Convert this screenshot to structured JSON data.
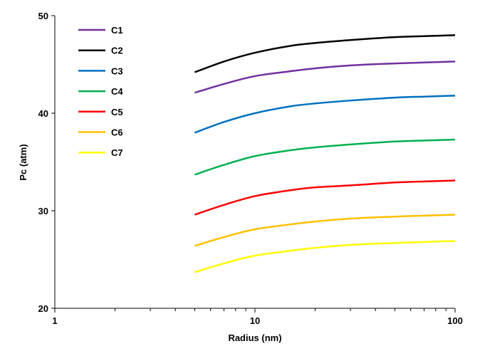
{
  "chart_data": {
    "type": "line",
    "title": "",
    "xlabel": "Radius (nm)",
    "ylabel": "Pc (atm)",
    "xscale": "log",
    "xlim": [
      1,
      100
    ],
    "ylim": [
      20,
      50
    ],
    "xticks": [
      "1",
      "10",
      "100"
    ],
    "yticks": [
      "20",
      "30",
      "40",
      "50"
    ],
    "grid": false,
    "legend_position": "top-left",
    "x": [
      5,
      7,
      10,
      15,
      20,
      30,
      50,
      70,
      100
    ],
    "series": [
      {
        "name": "C1",
        "color": "#7030A0",
        "values": [
          42.1,
          43.0,
          43.8,
          44.3,
          44.6,
          44.9,
          45.1,
          45.2,
          45.3
        ]
      },
      {
        "name": "C2",
        "color": "#000000",
        "values": [
          44.2,
          45.3,
          46.2,
          46.9,
          47.2,
          47.5,
          47.8,
          47.9,
          48.0
        ]
      },
      {
        "name": "C3",
        "color": "#0070C0",
        "values": [
          38.0,
          39.1,
          40.0,
          40.7,
          41.0,
          41.3,
          41.6,
          41.7,
          41.8
        ]
      },
      {
        "name": "C4",
        "color": "#00B050",
        "values": [
          33.7,
          34.7,
          35.6,
          36.2,
          36.5,
          36.8,
          37.1,
          37.2,
          37.3
        ]
      },
      {
        "name": "C5",
        "color": "#FF0000",
        "values": [
          29.6,
          30.6,
          31.5,
          32.1,
          32.4,
          32.6,
          32.9,
          33.0,
          33.1
        ]
      },
      {
        "name": "C6",
        "color": "#FFC000",
        "values": [
          26.4,
          27.3,
          28.1,
          28.6,
          28.9,
          29.2,
          29.4,
          29.5,
          29.6
        ]
      },
      {
        "name": "C7",
        "color": "#FFFF00",
        "values": [
          23.7,
          24.6,
          25.4,
          25.9,
          26.2,
          26.5,
          26.7,
          26.8,
          26.9
        ]
      }
    ]
  }
}
